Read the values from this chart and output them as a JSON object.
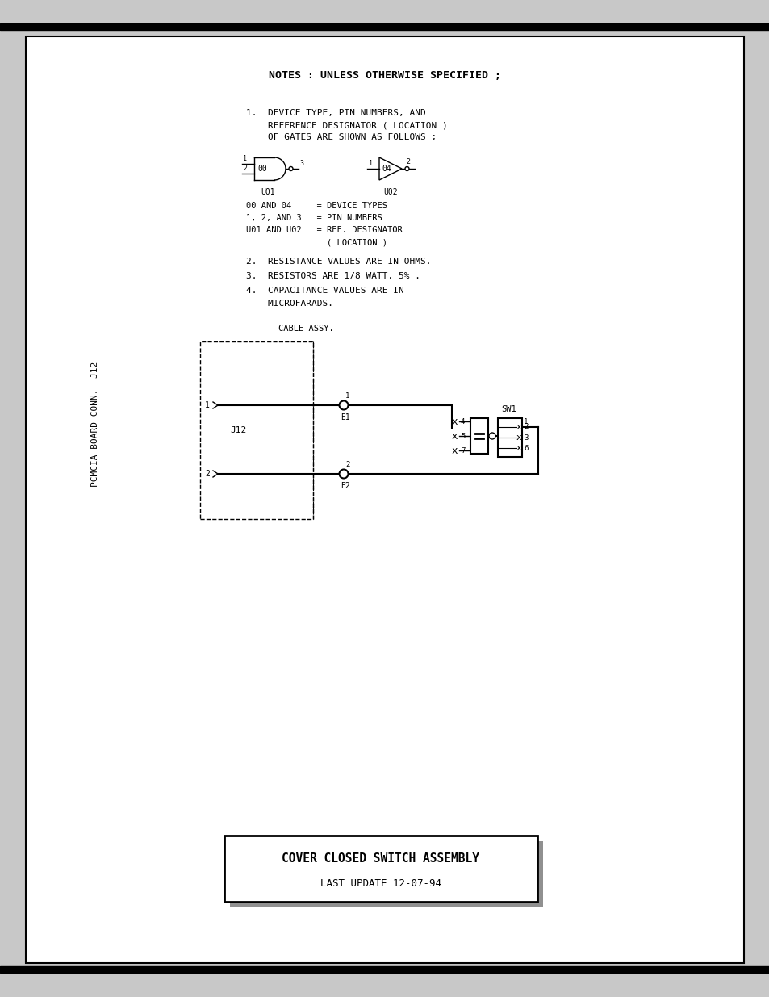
{
  "bg_color": "#c8c8c8",
  "page_bg": "#ffffff",
  "title_line1": "COVER CLOSED SWITCH ASSEMBLY",
  "title_line2": "LAST UPDATE 12-07-94",
  "notes_title": "NOTES : UNLESS OTHERWISE SPECIFIED ;",
  "note1_line1": "1.  DEVICE TYPE, PIN NUMBERS, AND",
  "note1_line2": "    REFERENCE DESIGNATOR ( LOCATION )",
  "note1_line3": "    OF GATES ARE SHOWN AS FOLLOWS ;",
  "note2": "2.  RESISTANCE VALUES ARE IN OHMS.",
  "note3": "3.  RESISTORS ARE 1/8 WATT, 5% .",
  "note4_line1": "4.  CAPACITANCE VALUES ARE IN",
  "note4_line2": "    MICROFARADS.",
  "legend_line1": "00 AND 04     = DEVICE TYPES",
  "legend_line2": "1, 2, AND 3   = PIN NUMBERS",
  "legend_line3": "U01 AND U02   = REF. DESIGNATOR",
  "legend_line4": "                ( LOCATION )",
  "label_cable": "CABLE ASSY.",
  "label_pcmcia": "PCMCIA BOARD CONN.  J12",
  "font_family": "monospace"
}
